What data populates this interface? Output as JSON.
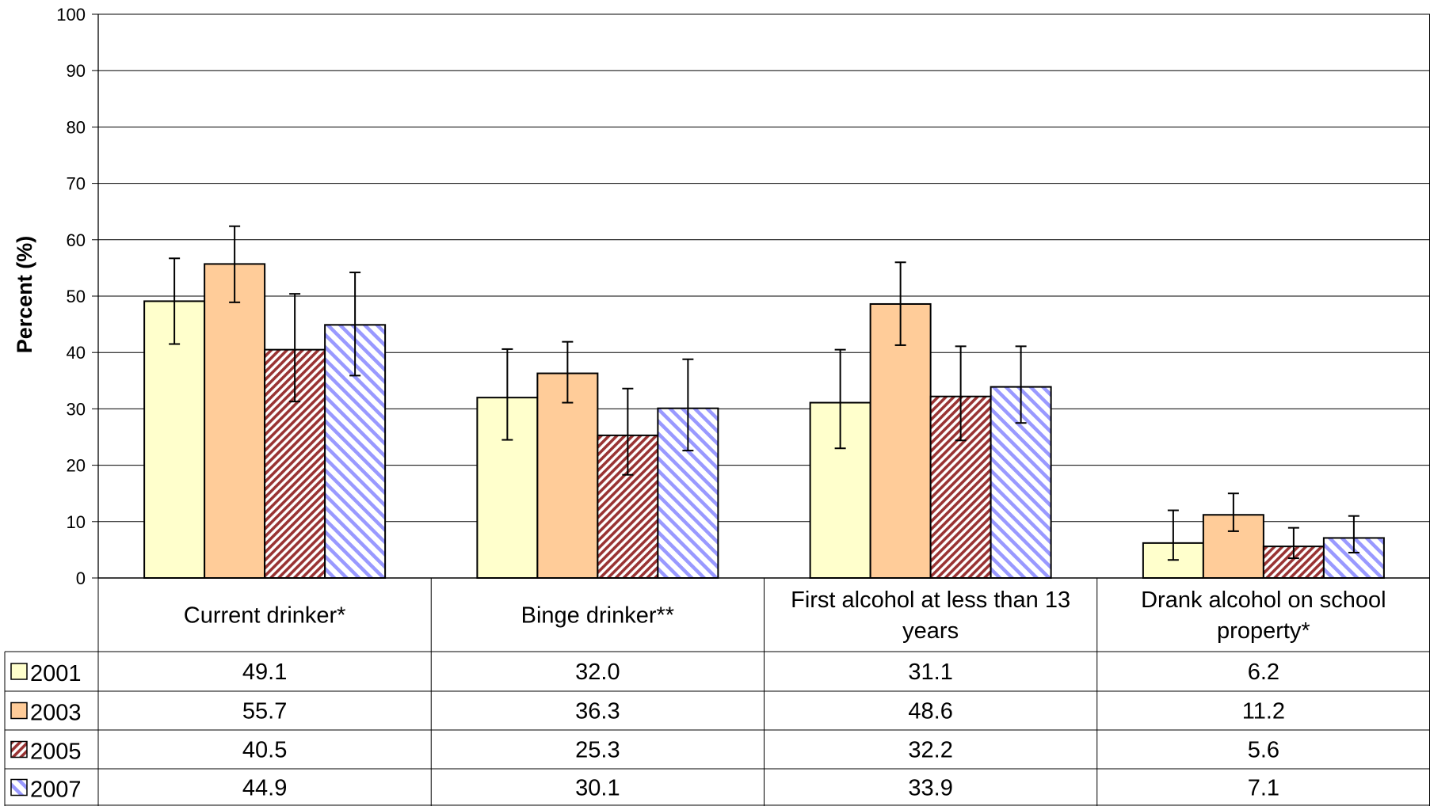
{
  "chart_data": {
    "type": "bar",
    "ylabel": "Percent (%)",
    "ylim": [
      0,
      100
    ],
    "yticks": [
      0,
      10,
      20,
      30,
      40,
      50,
      60,
      70,
      80,
      90,
      100
    ],
    "grid": true,
    "legend": "data-table-left",
    "categories": [
      [
        "Current drinker*"
      ],
      [
        "Binge drinker**"
      ],
      [
        "First alcohol at less than 13",
        "years"
      ],
      [
        "Drank alcohol on school",
        "property*"
      ]
    ],
    "series": [
      {
        "name": "2001",
        "pattern": "solid",
        "color": "#ffffcc",
        "stroke": "#ffffcc",
        "values": [
          49.1,
          32.0,
          31.1,
          6.2
        ],
        "labels": [
          "49.1",
          "32.0",
          "31.1",
          "6.2"
        ],
        "ci_low": [
          41.5,
          24.5,
          23.0,
          3.2
        ],
        "ci_high": [
          56.7,
          40.6,
          40.5,
          12.0
        ]
      },
      {
        "name": "2003",
        "pattern": "solid",
        "color": "#ffcc99",
        "stroke": "#ffcc99",
        "values": [
          55.7,
          36.3,
          48.6,
          11.2
        ],
        "labels": [
          "55.7",
          "36.3",
          "48.6",
          "11.2"
        ],
        "ci_low": [
          48.9,
          31.1,
          41.3,
          8.3
        ],
        "ci_high": [
          62.4,
          41.9,
          56.0,
          15.0
        ]
      },
      {
        "name": "2005",
        "pattern": "diag-dense",
        "color": "#ffffff",
        "stroke": "#993333",
        "values": [
          40.5,
          25.3,
          32.2,
          5.6
        ],
        "labels": [
          "40.5",
          "25.3",
          "32.2",
          "5.6"
        ],
        "ci_low": [
          31.3,
          18.3,
          24.4,
          3.5
        ],
        "ci_high": [
          50.4,
          33.6,
          41.1,
          8.9
        ]
      },
      {
        "name": "2007",
        "pattern": "diag-wide",
        "color": "#ffffff",
        "stroke": "#9999ff",
        "values": [
          44.9,
          30.1,
          33.9,
          7.1
        ],
        "labels": [
          "44.9",
          "30.1",
          "33.9",
          "7.1"
        ],
        "ci_low": [
          35.9,
          22.6,
          27.5,
          4.5
        ],
        "ci_high": [
          54.2,
          38.8,
          41.1,
          11.0
        ]
      }
    ]
  }
}
